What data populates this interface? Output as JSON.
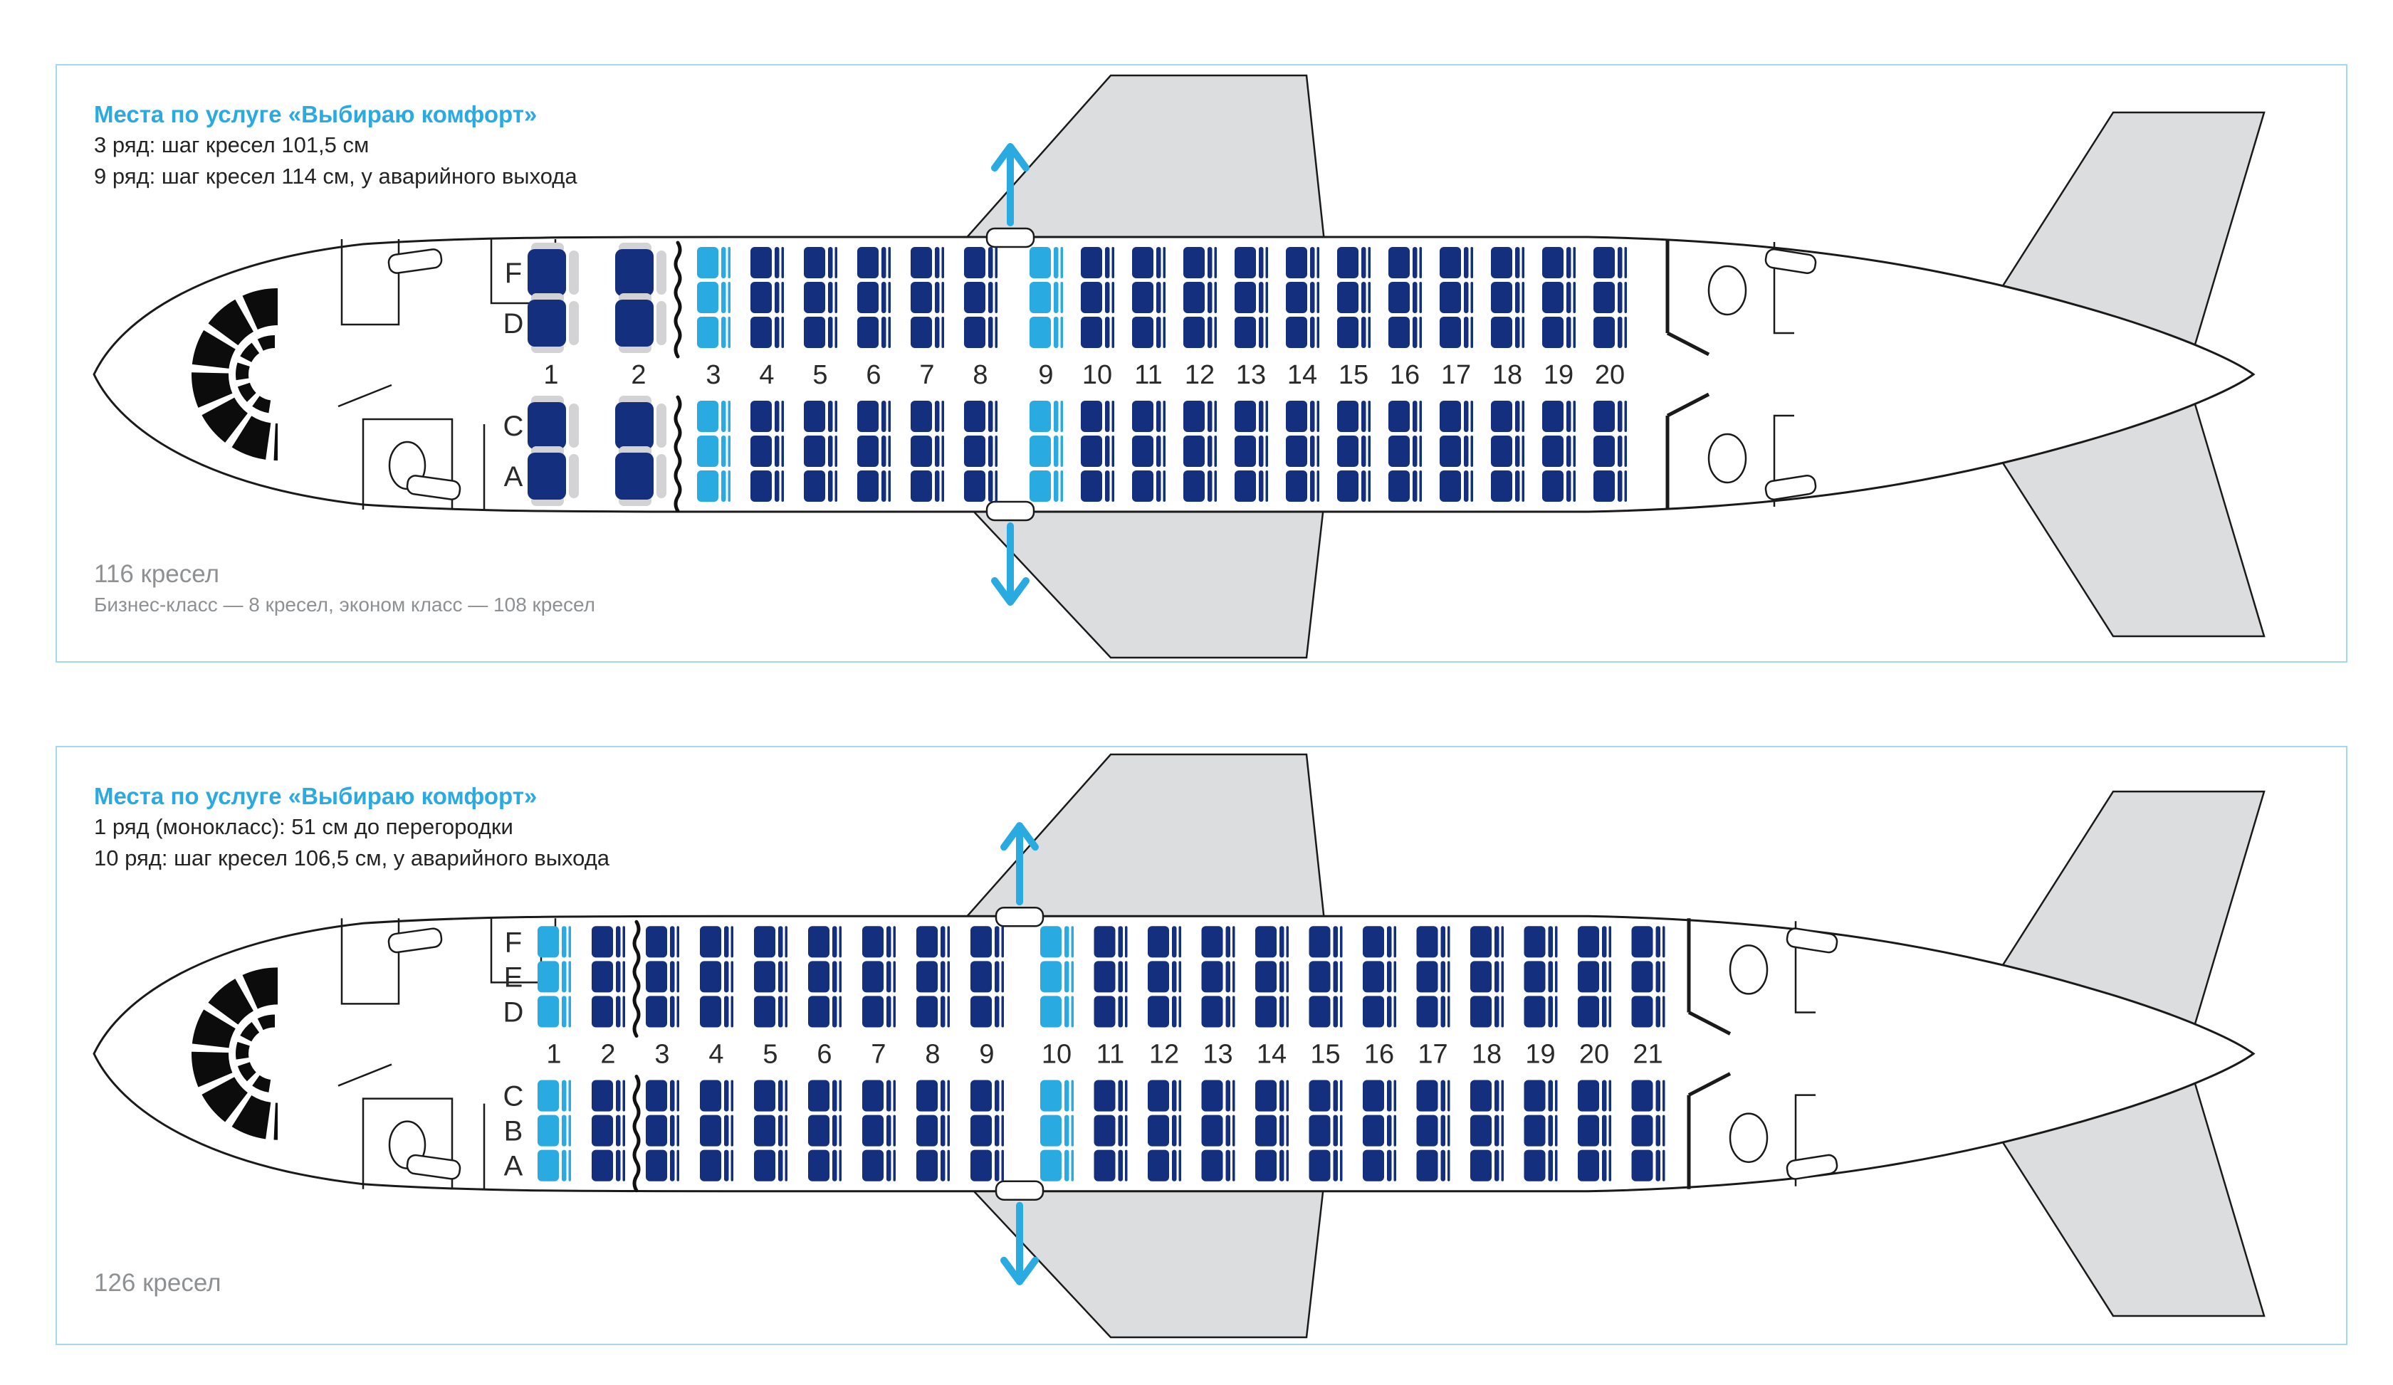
{
  "colors": {
    "accent": "#29abe2",
    "seat_navy": "#142f7e",
    "seat_comfort": "#29abe2",
    "armrest_gray": "#d3d3d5",
    "wing_gray": "#dcdddf",
    "outline": "#1a1a1a",
    "text_dark": "#242424",
    "text_gray": "#8e9194",
    "panel_border": "#a5d8eb"
  },
  "panels": [
    {
      "title": "Места по услуге «Выбираю комфорт»",
      "notes": [
        "3 ряд: шаг кресел 101,5 см",
        "9 ряд: шаг кресел 114 см, у аварийного выхода"
      ],
      "footer_title": "116 кресел",
      "footer_sub": "Бизнес-класс — 8 кресел, эконом класс — 108 кресел",
      "seatmap": {
        "row_numbers": [
          "1",
          "2",
          "3",
          "4",
          "5",
          "6",
          "7",
          "8",
          "9",
          "10",
          "11",
          "12",
          "13",
          "14",
          "15",
          "16",
          "17",
          "18",
          "19",
          "20"
        ],
        "letters_upper": [
          "F",
          "D"
        ],
        "letters_lower": [
          "C",
          "A"
        ],
        "business_rows": [
          1,
          2
        ],
        "comfort_rows": [
          3,
          9
        ],
        "curtain_after_row": 2,
        "exit_after_row": 8
      }
    },
    {
      "title": "Места по услуге «Выбираю комфорт»",
      "notes": [
        "1 ряд (монокласс): 51 см до перегородки",
        "10 ряд: шаг кресел 106,5 см, у аварийного выхода"
      ],
      "footer_title": "126 кресел",
      "footer_sub": "",
      "seatmap": {
        "row_numbers": [
          "1",
          "2",
          "3",
          "4",
          "5",
          "6",
          "7",
          "8",
          "9",
          "10",
          "11",
          "12",
          "13",
          "14",
          "15",
          "16",
          "17",
          "18",
          "19",
          "20",
          "21"
        ],
        "letters_upper": [
          "F",
          "E",
          "D"
        ],
        "letters_lower": [
          "C",
          "B",
          "A"
        ],
        "business_rows": [],
        "comfort_rows": [
          1,
          10
        ],
        "curtain_after_row": 2,
        "exit_after_row": 9
      }
    }
  ]
}
